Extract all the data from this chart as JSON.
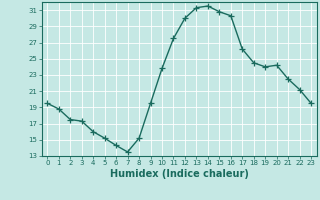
{
  "x": [
    0,
    1,
    2,
    3,
    4,
    5,
    6,
    7,
    8,
    9,
    10,
    11,
    12,
    13,
    14,
    15,
    16,
    17,
    18,
    19,
    20,
    21,
    22,
    23
  ],
  "y": [
    19.5,
    18.8,
    17.5,
    17.3,
    16.0,
    15.2,
    14.3,
    13.5,
    15.2,
    19.5,
    23.8,
    27.5,
    30.0,
    31.3,
    31.5,
    30.8,
    30.3,
    26.2,
    24.5,
    24.0,
    24.2,
    22.5,
    21.2,
    19.5
  ],
  "line_color": "#1a6b5e",
  "marker": "+",
  "markersize": 4,
  "linewidth": 1.0,
  "xlabel": "Humidex (Indice chaleur)",
  "xlabel_fontsize": 7,
  "ylim": [
    13,
    32
  ],
  "xlim": [
    -0.5,
    23.5
  ],
  "yticks": [
    13,
    15,
    17,
    19,
    21,
    23,
    25,
    27,
    29,
    31
  ],
  "xticks": [
    0,
    1,
    2,
    3,
    4,
    5,
    6,
    7,
    8,
    9,
    10,
    11,
    12,
    13,
    14,
    15,
    16,
    17,
    18,
    19,
    20,
    21,
    22,
    23
  ],
  "bg_color": "#c5e8e4",
  "grid_color": "#ffffff",
  "tick_color": "#1a6b5e",
  "tick_labelcolor": "#1a6b5e",
  "axes_color": "#1a6b5e",
  "tick_fontsize": 5,
  "ylabel_fontsize": 6
}
